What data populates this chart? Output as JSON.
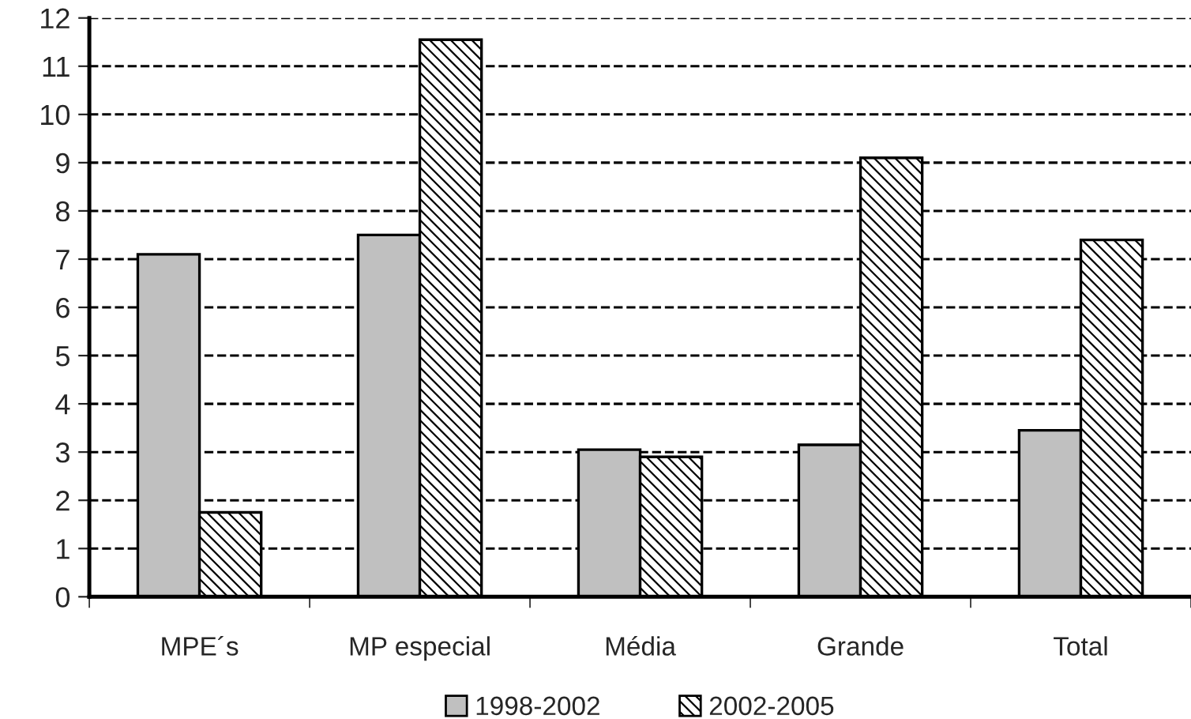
{
  "chart_data": {
    "type": "bar",
    "categories": [
      "MPE´s",
      "MP especial",
      "Média",
      "Grande",
      "Total"
    ],
    "series": [
      {
        "name": "1998-2002",
        "color": "#c0c0c0",
        "values": [
          7.1,
          7.5,
          3.05,
          3.15,
          3.45
        ]
      },
      {
        "name": "2002-2005",
        "color": "#000000",
        "values": [
          1.75,
          11.55,
          2.9,
          9.1,
          7.4
        ]
      }
    ],
    "ylim": [
      0,
      12
    ],
    "yticks": [
      0,
      1,
      2,
      3,
      4,
      5,
      6,
      7,
      8,
      9,
      10,
      11,
      12
    ],
    "grid": "y",
    "line_style": "dashed",
    "legend": "bottom"
  }
}
